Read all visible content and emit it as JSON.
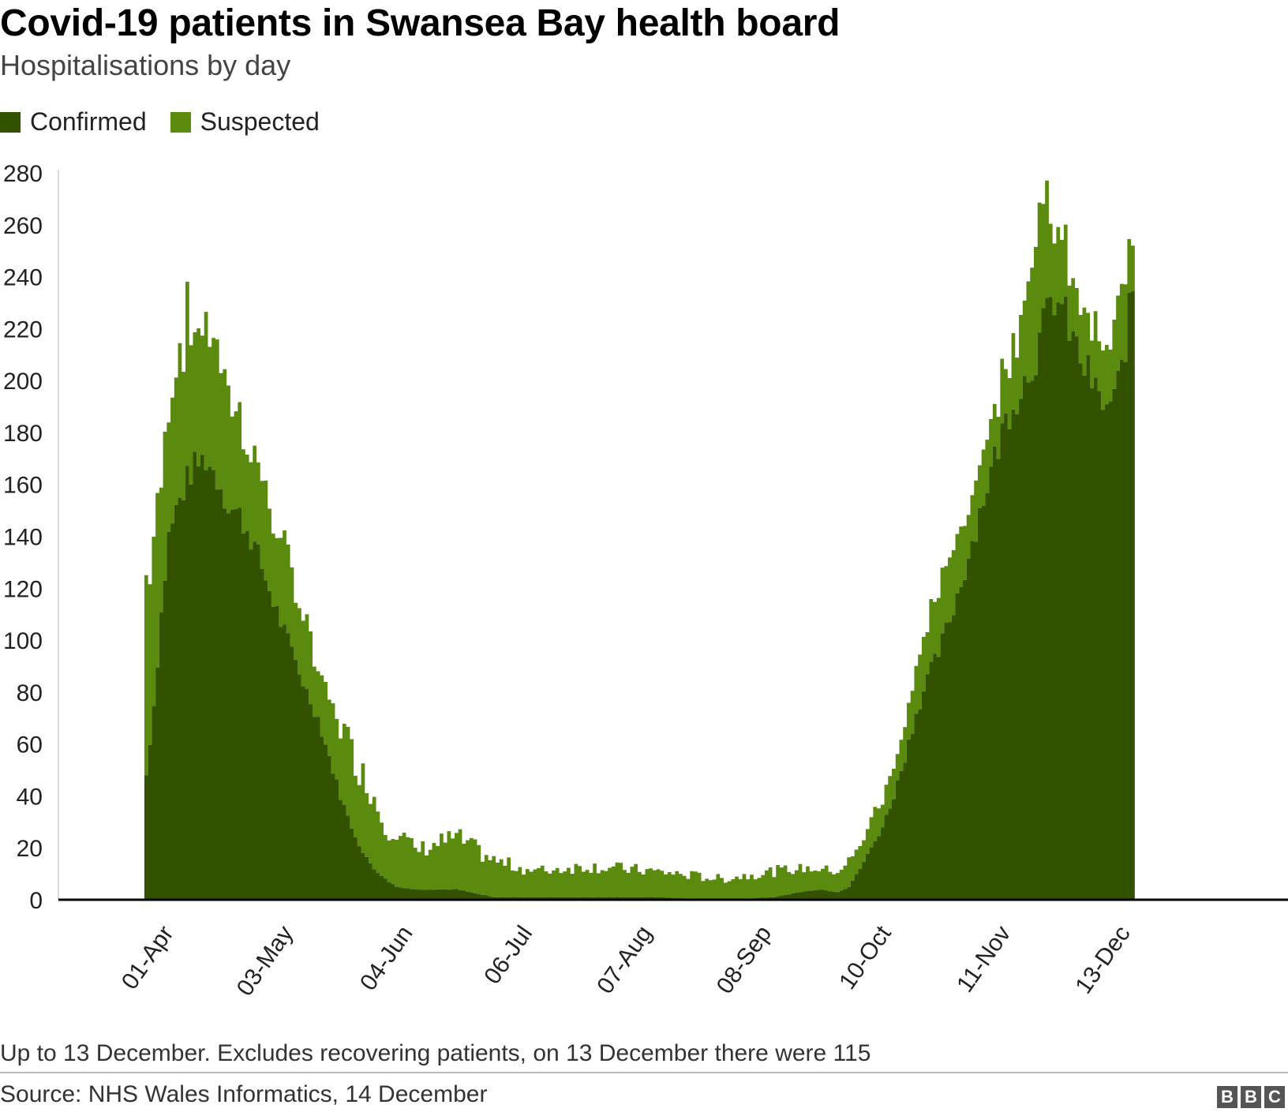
{
  "title": "Covid-19 patients in Swansea Bay health board",
  "subtitle": "Hospitalisations by day",
  "footnote": "Up to 13 December. Excludes recovering patients, on 13 December there were 115",
  "source": "Source: NHS Wales Informatics, 14 December",
  "logo": [
    "B",
    "B",
    "C"
  ],
  "colors": {
    "confirmed": "#335200",
    "suspected": "#5a8a0e",
    "axis": "#000000",
    "grid": "#dddddd",
    "text": "#222222"
  },
  "chart_data": {
    "type": "area",
    "stacked": true,
    "title": "Covid-19 patients in Swansea Bay health board",
    "subtitle": "Hospitalisations by day",
    "legend_position": "top-left",
    "grid": false,
    "xlabel": "",
    "ylabel": "",
    "ylim": [
      0,
      280
    ],
    "y_ticks": [
      0,
      20,
      40,
      60,
      80,
      100,
      120,
      140,
      160,
      180,
      200,
      220,
      240,
      260,
      280
    ],
    "x_range": [
      "2020-03-01",
      "2021-01-24"
    ],
    "x_ticks": [
      "01-Apr",
      "03-May",
      "04-Jun",
      "06-Jul",
      "07-Aug",
      "08-Sep",
      "10-Oct",
      "11-Nov",
      "13-Dec"
    ],
    "x_tick_dates": [
      "2020-04-01",
      "2020-05-03",
      "2020-06-04",
      "2020-07-06",
      "2020-08-07",
      "2020-09-08",
      "2020-10-10",
      "2020-11-11",
      "2020-12-13"
    ],
    "series": [
      {
        "name": "Confirmed",
        "color": "#335200",
        "points": [
          [
            "2020-03-24",
            48
          ],
          [
            "2020-03-26",
            75
          ],
          [
            "2020-03-28",
            110
          ],
          [
            "2020-03-30",
            140
          ],
          [
            "2020-04-01",
            150
          ],
          [
            "2020-04-03",
            158
          ],
          [
            "2020-04-05",
            165
          ],
          [
            "2020-04-07",
            168
          ],
          [
            "2020-04-09",
            170
          ],
          [
            "2020-04-11",
            165
          ],
          [
            "2020-04-13",
            160
          ],
          [
            "2020-04-15",
            152
          ],
          [
            "2020-04-18",
            148
          ],
          [
            "2020-04-21",
            140
          ],
          [
            "2020-04-24",
            128
          ],
          [
            "2020-04-27",
            115
          ],
          [
            "2020-04-30",
            103
          ],
          [
            "2020-05-03",
            92
          ],
          [
            "2020-05-06",
            80
          ],
          [
            "2020-05-09",
            70
          ],
          [
            "2020-05-12",
            55
          ],
          [
            "2020-05-15",
            40
          ],
          [
            "2020-05-18",
            28
          ],
          [
            "2020-05-21",
            18
          ],
          [
            "2020-05-24",
            12
          ],
          [
            "2020-05-27",
            8
          ],
          [
            "2020-05-30",
            5
          ],
          [
            "2020-06-04",
            4
          ],
          [
            "2020-06-15",
            4
          ],
          [
            "2020-06-25",
            1
          ],
          [
            "2020-07-06",
            1
          ],
          [
            "2020-07-20",
            1
          ],
          [
            "2020-08-07",
            1
          ],
          [
            "2020-08-25",
            0
          ],
          [
            "2020-09-08",
            1
          ],
          [
            "2020-09-15",
            3
          ],
          [
            "2020-09-20",
            4
          ],
          [
            "2020-09-25",
            3
          ],
          [
            "2020-09-28",
            5
          ],
          [
            "2020-10-01",
            12
          ],
          [
            "2020-10-04",
            20
          ],
          [
            "2020-10-07",
            28
          ],
          [
            "2020-10-10",
            40
          ],
          [
            "2020-10-13",
            55
          ],
          [
            "2020-10-16",
            72
          ],
          [
            "2020-10-19",
            85
          ],
          [
            "2020-10-22",
            95
          ],
          [
            "2020-10-25",
            108
          ],
          [
            "2020-10-28",
            122
          ],
          [
            "2020-10-31",
            138
          ],
          [
            "2020-11-03",
            155
          ],
          [
            "2020-11-06",
            170
          ],
          [
            "2020-11-09",
            185
          ],
          [
            "2020-11-11",
            192
          ],
          [
            "2020-11-14",
            200
          ],
          [
            "2020-11-17",
            210
          ],
          [
            "2020-11-20",
            225
          ],
          [
            "2020-11-22",
            232
          ],
          [
            "2020-11-24",
            228
          ],
          [
            "2020-11-26",
            220
          ],
          [
            "2020-11-28",
            212
          ],
          [
            "2020-11-30",
            205
          ],
          [
            "2020-12-02",
            200
          ],
          [
            "2020-12-04",
            192
          ],
          [
            "2020-12-06",
            190
          ],
          [
            "2020-12-08",
            192
          ],
          [
            "2020-12-10",
            205
          ],
          [
            "2020-12-12",
            225
          ],
          [
            "2020-12-13",
            235
          ]
        ]
      },
      {
        "name": "Suspected",
        "color": "#5a8a0e",
        "points": [
          [
            "2020-03-24",
            75
          ],
          [
            "2020-03-26",
            65
          ],
          [
            "2020-03-28",
            50
          ],
          [
            "2020-03-30",
            52
          ],
          [
            "2020-04-01",
            58
          ],
          [
            "2020-04-03",
            62
          ],
          [
            "2020-04-05",
            55
          ],
          [
            "2020-04-07",
            52
          ],
          [
            "2020-04-09",
            50
          ],
          [
            "2020-04-11",
            55
          ],
          [
            "2020-04-13",
            48
          ],
          [
            "2020-04-15",
            42
          ],
          [
            "2020-04-18",
            38
          ],
          [
            "2020-04-21",
            35
          ],
          [
            "2020-04-24",
            34
          ],
          [
            "2020-04-27",
            32
          ],
          [
            "2020-04-30",
            30
          ],
          [
            "2020-05-03",
            28
          ],
          [
            "2020-05-06",
            26
          ],
          [
            "2020-05-09",
            18
          ],
          [
            "2020-05-12",
            22
          ],
          [
            "2020-05-15",
            28
          ],
          [
            "2020-05-18",
            30
          ],
          [
            "2020-05-21",
            30
          ],
          [
            "2020-05-24",
            28
          ],
          [
            "2020-05-27",
            20
          ],
          [
            "2020-05-30",
            22
          ],
          [
            "2020-06-04",
            15
          ],
          [
            "2020-06-15",
            20
          ],
          [
            "2020-06-25",
            14
          ],
          [
            "2020-07-06",
            10
          ],
          [
            "2020-07-20",
            12
          ],
          [
            "2020-08-07",
            10
          ],
          [
            "2020-08-25",
            8
          ],
          [
            "2020-09-08",
            10
          ],
          [
            "2020-09-15",
            9
          ],
          [
            "2020-09-20",
            8
          ],
          [
            "2020-09-25",
            8
          ],
          [
            "2020-09-28",
            10
          ],
          [
            "2020-10-01",
            8
          ],
          [
            "2020-10-04",
            12
          ],
          [
            "2020-10-07",
            10
          ],
          [
            "2020-10-10",
            12
          ],
          [
            "2020-10-13",
            14
          ],
          [
            "2020-10-16",
            18
          ],
          [
            "2020-10-19",
            20
          ],
          [
            "2020-10-22",
            24
          ],
          [
            "2020-10-25",
            22
          ],
          [
            "2020-10-28",
            22
          ],
          [
            "2020-10-31",
            20
          ],
          [
            "2020-11-03",
            18
          ],
          [
            "2020-11-06",
            20
          ],
          [
            "2020-11-09",
            22
          ],
          [
            "2020-11-11",
            24
          ],
          [
            "2020-11-14",
            35
          ],
          [
            "2020-11-17",
            48
          ],
          [
            "2020-11-20",
            42
          ],
          [
            "2020-11-22",
            30
          ],
          [
            "2020-11-24",
            22
          ],
          [
            "2020-11-26",
            25
          ],
          [
            "2020-11-28",
            20
          ],
          [
            "2020-11-30",
            22
          ],
          [
            "2020-12-02",
            20
          ],
          [
            "2020-12-04",
            22
          ],
          [
            "2020-12-06",
            20
          ],
          [
            "2020-12-08",
            24
          ],
          [
            "2020-12-10",
            28
          ],
          [
            "2020-12-12",
            25
          ],
          [
            "2020-12-13",
            18
          ]
        ]
      }
    ]
  }
}
